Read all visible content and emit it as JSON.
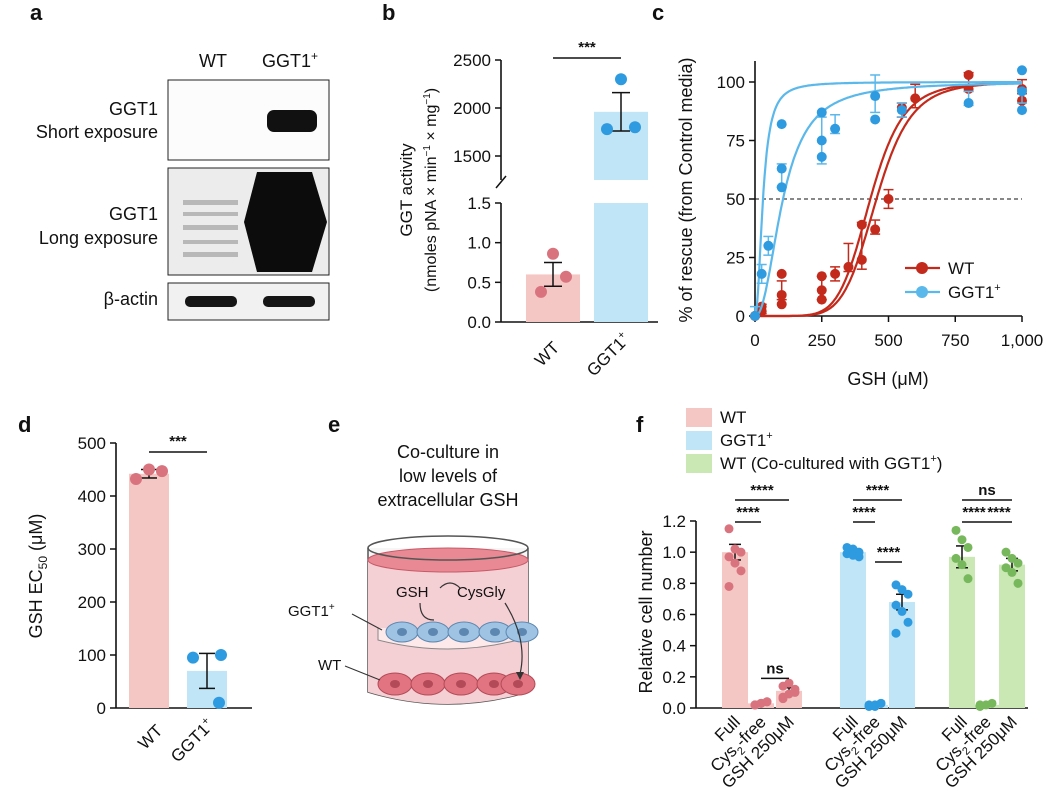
{
  "colors": {
    "wt_bar": "#f5c7c4",
    "wt_dot": "#d9737e",
    "wt_fit": "#c42a1c",
    "ggt_bar": "#bfe5f7",
    "ggt_dot": "#2e9be0",
    "ggt_fit": "#5bb8ea",
    "cc_bar": "#c9e8b4",
    "cc_dot": "#78b85c"
  },
  "panels": {
    "a": "a",
    "b": "b",
    "c": "c",
    "d": "d",
    "e": "e",
    "f": "f"
  },
  "panel_a": {
    "col_wt": "WT",
    "col_ggt": "GGT1",
    "col_ggt_sup": "+",
    "row1_l1": "GGT1",
    "row1_l2": "Short exposure",
    "row2_l1": "GGT1",
    "row2_l2": "Long exposure",
    "row3": "β-actin"
  },
  "panel_e": {
    "title1": "Co-culture in",
    "title2": "low levels of",
    "title3": "extracellular GSH",
    "gsh": "GSH",
    "cysgly": "CysGly",
    "ggt": "GGT1",
    "ggt_sup": "+",
    "wt": "WT"
  },
  "chart_data": [
    {
      "panel": "b",
      "type": "bar",
      "ylabel1": "GGT activity",
      "ylabel2": "(nmoles pNA × min",
      "ylabel_sup1": "−1",
      "ylabel_mid": " × mg",
      "ylabel_sup2": "−1",
      "ylabel_end": ")",
      "categories": [
        "WT",
        "GGT1"
      ],
      "category_sup": [
        "",
        "+"
      ],
      "values": [
        0.6,
        1960
      ],
      "errors": [
        0.15,
        200
      ],
      "points": [
        [
          0.38,
          0.57,
          0.86
        ],
        [
          1780,
          1800,
          2300
        ]
      ],
      "ylim_lower": [
        0,
        1.5
      ],
      "ylim_upper": [
        1250,
        2500
      ],
      "yticks_lower": [
        "0.0",
        "0.5",
        "1.0",
        "1.5"
      ],
      "yticks_upper": [
        "1500",
        "2000",
        "2500"
      ],
      "significance": "***"
    },
    {
      "panel": "c",
      "type": "scatter",
      "xlabel": "GSH (μM)",
      "ylabel": "% of rescue (from Control media)",
      "xticks": [
        "0",
        "250",
        "500",
        "750",
        "1,000"
      ],
      "yticks": [
        "0",
        "25",
        "50",
        "75",
        "100"
      ],
      "xlim": [
        0,
        1000
      ],
      "ylim": [
        0,
        105
      ],
      "ref_line": 50,
      "series": [
        {
          "name": "WT",
          "ec50_1": 432,
          "ec50_2": 455,
          "hill": 7,
          "points": [
            [
              0,
              0
            ],
            [
              0,
              0
            ],
            [
              25,
              2
            ],
            [
              25,
              4
            ],
            [
              100,
              5
            ],
            [
              100,
              9
            ],
            [
              100,
              18
            ],
            [
              250,
              7
            ],
            [
              250,
              11
            ],
            [
              250,
              17
            ],
            [
              300,
              18
            ],
            [
              350,
              21
            ],
            [
              400,
              24
            ],
            [
              400,
              39
            ],
            [
              450,
              37
            ],
            [
              500,
              50
            ],
            [
              550,
              89
            ],
            [
              600,
              93
            ],
            [
              800,
              97
            ],
            [
              800,
              103
            ],
            [
              1000,
              97
            ],
            [
              1000,
              92
            ]
          ],
          "means": [
            [
              0,
              0
            ],
            [
              25,
              3
            ],
            [
              100,
              11
            ],
            [
              250,
              12
            ],
            [
              300,
              18
            ],
            [
              350,
              25
            ],
            [
              400,
              30
            ],
            [
              450,
              38
            ],
            [
              500,
              50
            ],
            [
              550,
              88
            ],
            [
              600,
              94
            ],
            [
              800,
              100
            ],
            [
              1000,
              98
            ]
          ],
          "errs": [
            0,
            2,
            4,
            5,
            3,
            6,
            10,
            3,
            4,
            3,
            5,
            4,
            3
          ]
        },
        {
          "name": "GGT1",
          "name_sup": "+",
          "ec50_1": 30,
          "ec50_2": 105,
          "hill": 2.2,
          "points": [
            [
              0,
              0
            ],
            [
              25,
              18
            ],
            [
              50,
              30
            ],
            [
              100,
              55
            ],
            [
              100,
              63
            ],
            [
              100,
              82
            ],
            [
              250,
              68
            ],
            [
              250,
              75
            ],
            [
              250,
              87
            ],
            [
              300,
              80
            ],
            [
              450,
              84
            ],
            [
              450,
              94
            ],
            [
              550,
              88
            ],
            [
              800,
              91
            ],
            [
              1000,
              96
            ],
            [
              1000,
              88
            ],
            [
              1000,
              105
            ]
          ],
          "means": [
            [
              0,
              2
            ],
            [
              25,
              18
            ],
            [
              50,
              30
            ],
            [
              100,
              60
            ],
            [
              250,
              75
            ],
            [
              300,
              82
            ],
            [
              450,
              95
            ],
            [
              550,
              88
            ],
            [
              800,
              93
            ],
            [
              1000,
              94
            ]
          ],
          "errs": [
            2,
            4,
            4,
            5,
            10,
            4,
            8,
            3,
            3,
            3
          ]
        }
      ]
    },
    {
      "panel": "d",
      "type": "bar",
      "ylabel": "GSH EC",
      "ylabel_sub": "50",
      "ylabel_end": " (μM)",
      "categories": [
        "WT",
        "GGT1"
      ],
      "category_sup": [
        "",
        "+"
      ],
      "values": [
        442,
        70
      ],
      "errors": [
        8,
        33
      ],
      "points": [
        [
          432,
          450,
          447
        ],
        [
          95,
          100,
          10
        ]
      ],
      "ylim": [
        0,
        500
      ],
      "yticks": [
        "0",
        "100",
        "200",
        "300",
        "400",
        "500"
      ],
      "significance": "***"
    },
    {
      "panel": "f",
      "type": "bar",
      "ylabel": "Relative cell number",
      "legend": [
        {
          "label": "WT"
        },
        {
          "label": "GGT1",
          "sup": "+"
        },
        {
          "label": "WT (Co-cultured with GGT1",
          "sup": "+",
          "end": ")"
        }
      ],
      "categories": [
        "Full",
        "Cys",
        "free",
        "GSH 250μM"
      ],
      "cat_sub": "2",
      "cat_dash": "-",
      "ylim": [
        0,
        1.2
      ],
      "yticks": [
        "0.0",
        "0.2",
        "0.4",
        "0.6",
        "0.8",
        "1.0",
        "1.2"
      ],
      "groups": [
        {
          "values": [
            1.0,
            0.03,
            0.11
          ],
          "errors": [
            0.05,
            0.01,
            0.02
          ],
          "points": [
            [
              1.15,
              1.02,
              1.0,
              0.97,
              0.93,
              0.88,
              0.78
            ],
            [
              0.02,
              0.03,
              0.04,
              0.02,
              0.03,
              0.04,
              0.02
            ],
            [
              0.07,
              0.09,
              0.12,
              0.14,
              0.16,
              0.1,
              0.06
            ]
          ],
          "sig": [
            [
              "****",
              0,
              2,
              2
            ],
            [
              "****",
              0,
              1,
              1
            ],
            [
              "ns",
              1,
              2,
              1
            ]
          ]
        },
        {
          "values": [
            1.0,
            0.02,
            0.68
          ],
          "errors": [
            0.02,
            0.01,
            0.05
          ],
          "points": [
            [
              1.03,
              1.02,
              1.0,
              0.99,
              0.98,
              0.97
            ],
            [
              0.01,
              0.02,
              0.03,
              0.02,
              0.01,
              0.03
            ],
            [
              0.79,
              0.76,
              0.73,
              0.66,
              0.62,
              0.55,
              0.48
            ]
          ],
          "sig": [
            [
              "****",
              0,
              2,
              2
            ],
            [
              "****",
              0,
              1,
              1
            ],
            [
              "****",
              1,
              2,
              0.86
            ]
          ]
        },
        {
          "values": [
            0.97,
            0.02,
            0.92
          ],
          "errors": [
            0.07,
            0.01,
            0.04
          ],
          "points": [
            [
              1.14,
              1.08,
              1.03,
              0.96,
              0.92,
              0.83
            ],
            [
              0.01,
              0.02,
              0.03,
              0.02
            ],
            [
              1.0,
              0.96,
              0.93,
              0.9,
              0.87,
              0.8
            ]
          ],
          "sig": [
            [
              "ns",
              0,
              2,
              2
            ],
            [
              "****",
              0,
              1,
              1
            ],
            [
              "****",
              1,
              2,
              1
            ]
          ]
        }
      ]
    }
  ]
}
